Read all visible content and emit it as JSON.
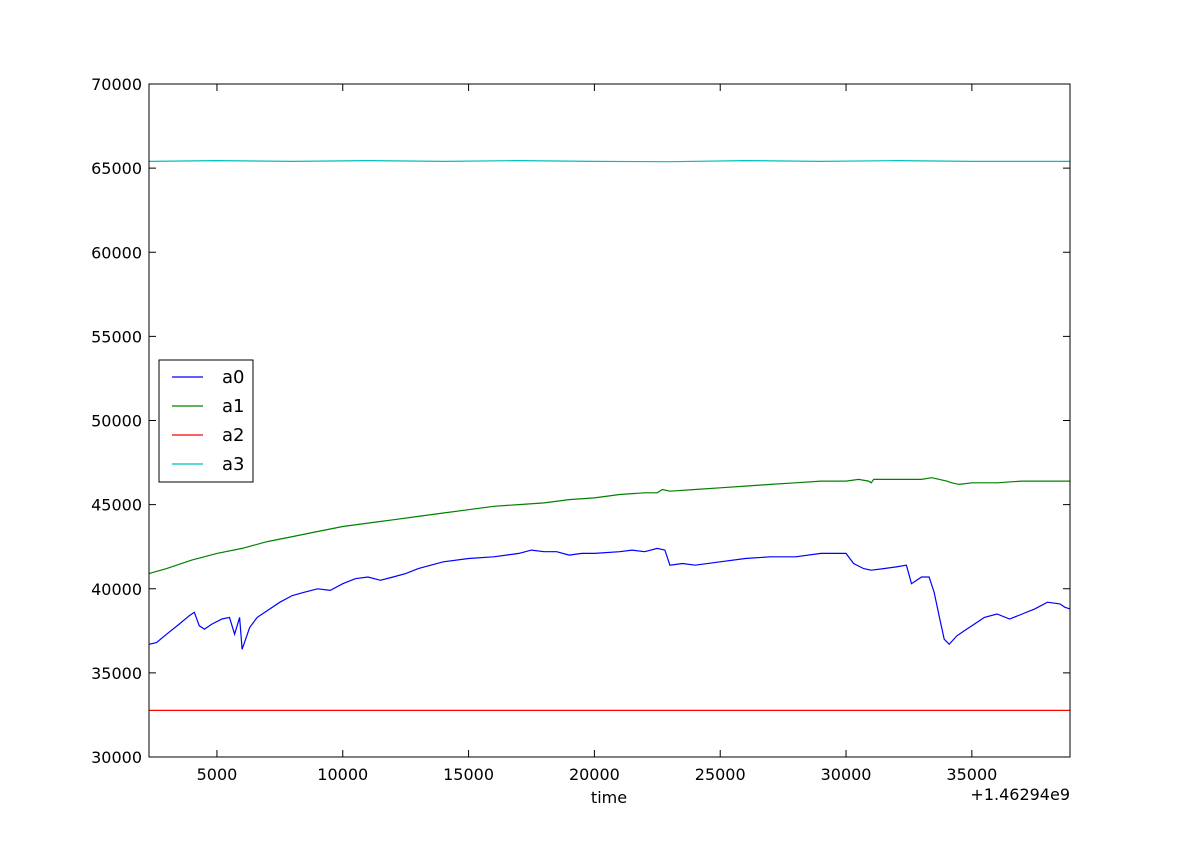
{
  "chart_data": {
    "type": "line",
    "title": "",
    "xlabel": "time",
    "ylabel": "",
    "x_offset_label": "+1.46294e9",
    "xlim": [
      2300,
      38900
    ],
    "ylim": [
      30000,
      70000
    ],
    "x_ticks": [
      5000,
      10000,
      15000,
      20000,
      25000,
      30000,
      35000
    ],
    "y_ticks": [
      30000,
      35000,
      40000,
      45000,
      50000,
      55000,
      60000,
      65000,
      70000
    ],
    "grid": false,
    "legend_position": "center-left",
    "series": [
      {
        "name": "a0",
        "color": "#0000ff",
        "points": [
          [
            2300,
            36700
          ],
          [
            2600,
            36800
          ],
          [
            3000,
            37300
          ],
          [
            3500,
            37900
          ],
          [
            3900,
            38400
          ],
          [
            4100,
            38600
          ],
          [
            4300,
            37800
          ],
          [
            4500,
            37600
          ],
          [
            4800,
            37900
          ],
          [
            5200,
            38200
          ],
          [
            5500,
            38300
          ],
          [
            5700,
            37300
          ],
          [
            5900,
            38300
          ],
          [
            6000,
            36400
          ],
          [
            6300,
            37700
          ],
          [
            6600,
            38300
          ],
          [
            7000,
            38700
          ],
          [
            7500,
            39200
          ],
          [
            8000,
            39600
          ],
          [
            8500,
            39800
          ],
          [
            9000,
            40000
          ],
          [
            9500,
            39900
          ],
          [
            10000,
            40300
          ],
          [
            10500,
            40600
          ],
          [
            11000,
            40700
          ],
          [
            11500,
            40500
          ],
          [
            12000,
            40700
          ],
          [
            12500,
            40900
          ],
          [
            13000,
            41200
          ],
          [
            13500,
            41400
          ],
          [
            14000,
            41600
          ],
          [
            15000,
            41800
          ],
          [
            16000,
            41900
          ],
          [
            17000,
            42100
          ],
          [
            17500,
            42300
          ],
          [
            18000,
            42200
          ],
          [
            18500,
            42200
          ],
          [
            19000,
            42000
          ],
          [
            19500,
            42100
          ],
          [
            20000,
            42100
          ],
          [
            21000,
            42200
          ],
          [
            21500,
            42300
          ],
          [
            22000,
            42200
          ],
          [
            22500,
            42400
          ],
          [
            22800,
            42300
          ],
          [
            23000,
            41400
          ],
          [
            23500,
            41500
          ],
          [
            24000,
            41400
          ],
          [
            25000,
            41600
          ],
          [
            26000,
            41800
          ],
          [
            27000,
            41900
          ],
          [
            28000,
            41900
          ],
          [
            29000,
            42100
          ],
          [
            30000,
            42100
          ],
          [
            30300,
            41500
          ],
          [
            30700,
            41200
          ],
          [
            31000,
            41100
          ],
          [
            31500,
            41200
          ],
          [
            32000,
            41300
          ],
          [
            32400,
            41400
          ],
          [
            32600,
            40300
          ],
          [
            33000,
            40700
          ],
          [
            33300,
            40700
          ],
          [
            33500,
            39800
          ],
          [
            33700,
            38400
          ],
          [
            33900,
            37000
          ],
          [
            34100,
            36700
          ],
          [
            34400,
            37200
          ],
          [
            34700,
            37500
          ],
          [
            35000,
            37800
          ],
          [
            35500,
            38300
          ],
          [
            36000,
            38500
          ],
          [
            36500,
            38200
          ],
          [
            37000,
            38500
          ],
          [
            37500,
            38800
          ],
          [
            38000,
            39200
          ],
          [
            38500,
            39100
          ],
          [
            38700,
            38900
          ],
          [
            38900,
            38800
          ]
        ]
      },
      {
        "name": "a1",
        "color": "#008000",
        "points": [
          [
            2300,
            40900
          ],
          [
            3000,
            41200
          ],
          [
            4000,
            41700
          ],
          [
            5000,
            42100
          ],
          [
            6000,
            42400
          ],
          [
            7000,
            42800
          ],
          [
            8000,
            43100
          ],
          [
            9000,
            43400
          ],
          [
            10000,
            43700
          ],
          [
            11000,
            43900
          ],
          [
            12000,
            44100
          ],
          [
            13000,
            44300
          ],
          [
            14000,
            44500
          ],
          [
            15000,
            44700
          ],
          [
            16000,
            44900
          ],
          [
            17000,
            45000
          ],
          [
            18000,
            45100
          ],
          [
            19000,
            45300
          ],
          [
            20000,
            45400
          ],
          [
            21000,
            45600
          ],
          [
            22000,
            45700
          ],
          [
            22500,
            45700
          ],
          [
            22700,
            45900
          ],
          [
            23000,
            45800
          ],
          [
            24000,
            45900
          ],
          [
            25000,
            46000
          ],
          [
            26000,
            46100
          ],
          [
            27000,
            46200
          ],
          [
            28000,
            46300
          ],
          [
            29000,
            46400
          ],
          [
            30000,
            46400
          ],
          [
            30500,
            46500
          ],
          [
            30900,
            46400
          ],
          [
            31000,
            46300
          ],
          [
            31100,
            46500
          ],
          [
            32000,
            46500
          ],
          [
            32500,
            46500
          ],
          [
            33000,
            46500
          ],
          [
            33400,
            46600
          ],
          [
            34000,
            46400
          ],
          [
            34200,
            46300
          ],
          [
            34500,
            46200
          ],
          [
            35000,
            46300
          ],
          [
            36000,
            46300
          ],
          [
            37000,
            46400
          ],
          [
            38000,
            46400
          ],
          [
            38900,
            46400
          ]
        ]
      },
      {
        "name": "a2",
        "color": "#ff0000",
        "points": [
          [
            2300,
            32768
          ],
          [
            38900,
            32768
          ]
        ]
      },
      {
        "name": "a3",
        "color": "#00bfbf",
        "points": [
          [
            2300,
            65400
          ],
          [
            5000,
            65450
          ],
          [
            8000,
            65400
          ],
          [
            11000,
            65450
          ],
          [
            14000,
            65400
          ],
          [
            17000,
            65450
          ],
          [
            20000,
            65400
          ],
          [
            23000,
            65380
          ],
          [
            26000,
            65450
          ],
          [
            29000,
            65400
          ],
          [
            32000,
            65450
          ],
          [
            35000,
            65400
          ],
          [
            38900,
            65400
          ]
        ]
      }
    ]
  }
}
